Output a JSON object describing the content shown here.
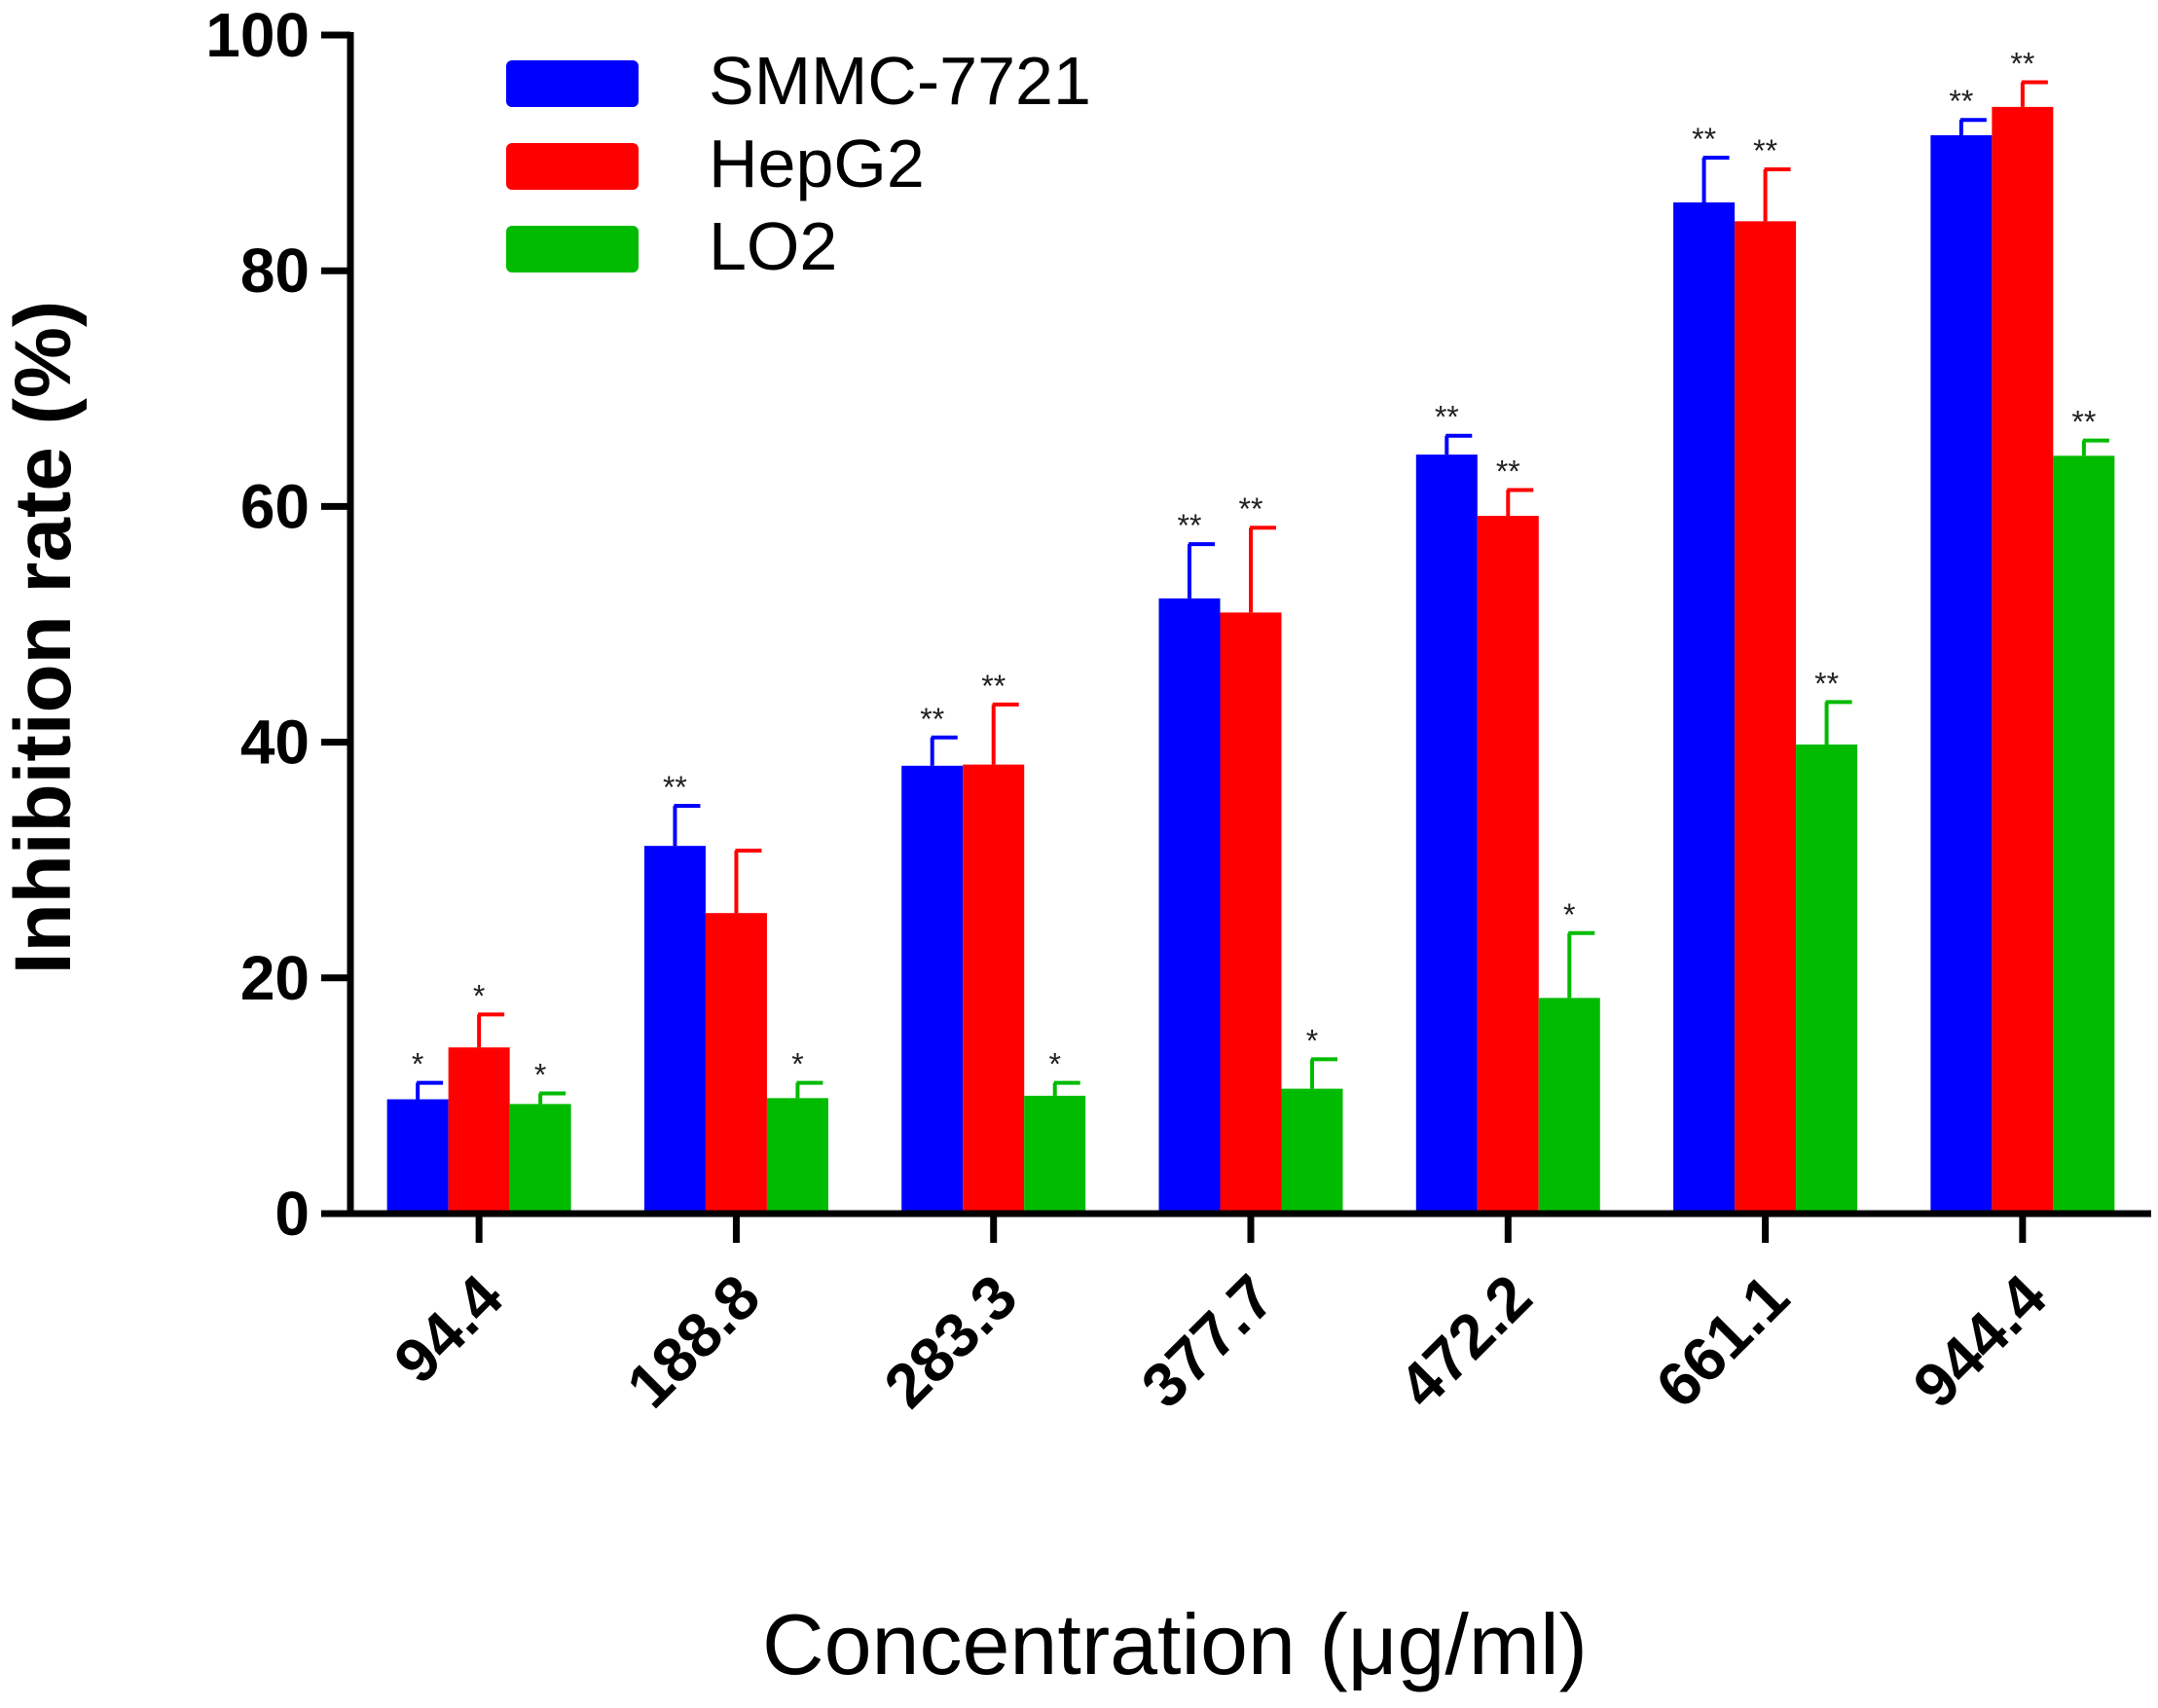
{
  "chart_data": {
    "type": "bar",
    "title": "",
    "xlabel": "Concentration (μg/ml)",
    "ylabel": "Inhibition rate (%)",
    "ylim": [
      0,
      100
    ],
    "yticks": [
      "0",
      "20",
      "40",
      "60",
      "80",
      "100"
    ],
    "categories": [
      "94.4",
      "188.8",
      "283.3",
      "377.7",
      "472.2",
      "661.1",
      "944.4"
    ],
    "legend_position": "top-left",
    "series": [
      {
        "name": "SMMC-7721",
        "color": "#0000ff",
        "values": [
          9.7,
          31.2,
          38.0,
          52.2,
          64.4,
          85.8,
          91.5
        ],
        "errors": [
          1.4,
          3.4,
          2.4,
          4.6,
          1.6,
          3.8,
          1.3
        ],
        "significance": [
          "*",
          "**",
          "**",
          "**",
          "**",
          "**",
          "**"
        ]
      },
      {
        "name": "HepG2",
        "color": "#ff0000",
        "values": [
          14.1,
          25.5,
          38.1,
          51.0,
          59.2,
          84.2,
          93.9
        ],
        "errors": [
          2.8,
          5.3,
          5.1,
          7.2,
          2.2,
          4.4,
          2.1
        ],
        "significance": [
          "*",
          "",
          "**",
          "**",
          "**",
          "**",
          "**"
        ]
      },
      {
        "name": "LO2",
        "color": "#00bb00",
        "values": [
          9.3,
          9.8,
          10.0,
          10.6,
          18.3,
          39.8,
          64.3
        ],
        "errors": [
          0.9,
          1.3,
          1.1,
          2.5,
          5.5,
          3.6,
          1.3
        ],
        "significance": [
          "*",
          "*",
          "*",
          "*",
          "*",
          "**",
          "**"
        ]
      }
    ]
  }
}
